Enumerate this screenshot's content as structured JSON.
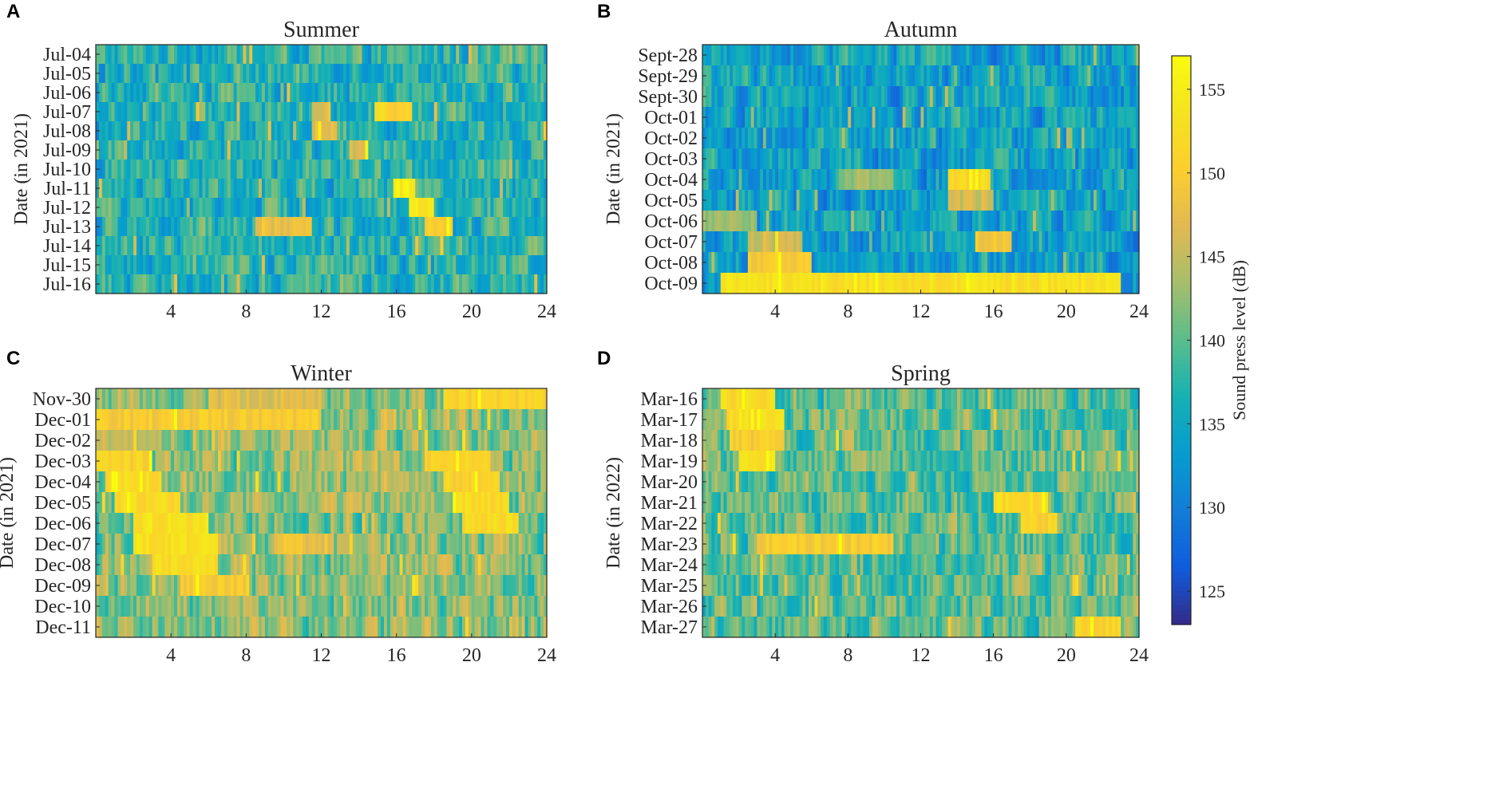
{
  "chart_data": {
    "type": "heatmap",
    "colorbar": {
      "label": "Sound press level (dB)",
      "ticks": [
        125,
        130,
        135,
        140,
        145,
        150,
        155
      ],
      "range": [
        123,
        157
      ],
      "colormap": "parula"
    },
    "x_ticks": [
      "4",
      "8",
      "12",
      "16",
      "20",
      "24"
    ],
    "x_range": [
      0,
      24
    ],
    "panels": [
      {
        "letter": "A",
        "title": "Summer",
        "ylabel": "Date (in 2021)",
        "dates": [
          "Jul-04",
          "Jul-05",
          "Jul-06",
          "Jul-07",
          "Jul-08",
          "Jul-09",
          "Jul-10",
          "Jul-11",
          "Jul-12",
          "Jul-13",
          "Jul-14",
          "Jul-15",
          "Jul-16"
        ],
        "base_level": 137,
        "spread": 4.5,
        "hotspots": [
          {
            "row": 3,
            "from": 14.8,
            "to": 16.8,
            "value": 151
          },
          {
            "row": 3,
            "from": 11.5,
            "to": 12.5,
            "value": 147
          },
          {
            "row": 4,
            "from": 11.5,
            "to": 12.8,
            "value": 148
          },
          {
            "row": 5,
            "from": 13.5,
            "to": 14.5,
            "value": 146
          },
          {
            "row": 7,
            "from": 15.8,
            "to": 17.0,
            "value": 155
          },
          {
            "row": 8,
            "from": 16.6,
            "to": 18.0,
            "value": 154
          },
          {
            "row": 9,
            "from": 8.5,
            "to": 11.5,
            "value": 148
          },
          {
            "row": 9,
            "from": 17.5,
            "to": 19.0,
            "value": 151
          }
        ]
      },
      {
        "letter": "B",
        "title": "Autumn",
        "ylabel": "Date (in 2021)",
        "dates": [
          "Sept-28",
          "Sept-29",
          "Sept-30",
          "Oct-01",
          "Oct-02",
          "Oct-03",
          "Oct-04",
          "Oct-05",
          "Oct-06",
          "Oct-07",
          "Oct-08",
          "Oct-09"
        ],
        "base_level": 134,
        "spread": 4.5,
        "hotspots": [
          {
            "row": 6,
            "from": 13.5,
            "to": 15.8,
            "value": 152
          },
          {
            "row": 6,
            "from": 7.5,
            "to": 10.5,
            "value": 143
          },
          {
            "row": 7,
            "from": 13.5,
            "to": 16.0,
            "value": 146
          },
          {
            "row": 8,
            "from": 0.0,
            "to": 3.0,
            "value": 143
          },
          {
            "row": 9,
            "from": 2.5,
            "to": 5.5,
            "value": 146
          },
          {
            "row": 9,
            "from": 15.0,
            "to": 17.0,
            "value": 149
          },
          {
            "row": 10,
            "from": 2.5,
            "to": 6.0,
            "value": 150
          },
          {
            "row": 11,
            "from": 1.0,
            "to": 23.0,
            "value": 153
          }
        ]
      },
      {
        "letter": "C",
        "title": "Winter",
        "ylabel": "Date (in 2021)",
        "dates": [
          "Nov-30",
          "Dec-01",
          "Dec-02",
          "Dec-03",
          "Dec-04",
          "Dec-05",
          "Dec-06",
          "Dec-07",
          "Dec-08",
          "Dec-09",
          "Dec-10",
          "Dec-11"
        ],
        "base_level": 142,
        "spread": 4.5,
        "hotspots": [
          {
            "row": 0,
            "from": 18.5,
            "to": 24.0,
            "value": 151
          },
          {
            "row": 0,
            "from": 6.0,
            "to": 12.0,
            "value": 147
          },
          {
            "row": 1,
            "from": 0.0,
            "to": 12.0,
            "value": 150
          },
          {
            "row": 2,
            "from": 0.0,
            "to": 3.5,
            "value": 145
          },
          {
            "row": 3,
            "from": 0.0,
            "to": 3.0,
            "value": 151
          },
          {
            "row": 3,
            "from": 17.5,
            "to": 21.0,
            "value": 151
          },
          {
            "row": 4,
            "from": 0.5,
            "to": 3.5,
            "value": 152
          },
          {
            "row": 4,
            "from": 18.5,
            "to": 21.5,
            "value": 151
          },
          {
            "row": 5,
            "from": 1.0,
            "to": 4.5,
            "value": 152
          },
          {
            "row": 5,
            "from": 19.0,
            "to": 22.0,
            "value": 152
          },
          {
            "row": 6,
            "from": 2.0,
            "to": 6.0,
            "value": 153
          },
          {
            "row": 6,
            "from": 19.5,
            "to": 22.5,
            "value": 152
          },
          {
            "row": 7,
            "from": 2.0,
            "to": 6.5,
            "value": 153
          },
          {
            "row": 7,
            "from": 9.5,
            "to": 12.5,
            "value": 148
          },
          {
            "row": 8,
            "from": 3.0,
            "to": 6.5,
            "value": 152
          },
          {
            "row": 9,
            "from": 4.5,
            "to": 8.0,
            "value": 150
          }
        ]
      },
      {
        "letter": "D",
        "title": "Spring",
        "ylabel": "Date (in 2022)",
        "dates": [
          "Mar-16",
          "Mar-17",
          "Mar-18",
          "Mar-19",
          "Mar-20",
          "Mar-21",
          "Mar-22",
          "Mar-23",
          "Mar-24",
          "Mar-25",
          "Mar-26",
          "Mar-27"
        ],
        "base_level": 140,
        "spread": 4.5,
        "hotspots": [
          {
            "row": 0,
            "from": 1.0,
            "to": 4.0,
            "value": 152
          },
          {
            "row": 1,
            "from": 1.5,
            "to": 4.5,
            "value": 153
          },
          {
            "row": 2,
            "from": 1.5,
            "to": 4.5,
            "value": 150
          },
          {
            "row": 3,
            "from": 2.0,
            "to": 4.0,
            "value": 153
          },
          {
            "row": 5,
            "from": 16.0,
            "to": 19.0,
            "value": 152
          },
          {
            "row": 6,
            "from": 17.5,
            "to": 19.5,
            "value": 151
          },
          {
            "row": 7,
            "from": 3.0,
            "to": 10.5,
            "value": 150
          },
          {
            "row": 11,
            "from": 20.5,
            "to": 23.0,
            "value": 151
          }
        ]
      }
    ]
  }
}
